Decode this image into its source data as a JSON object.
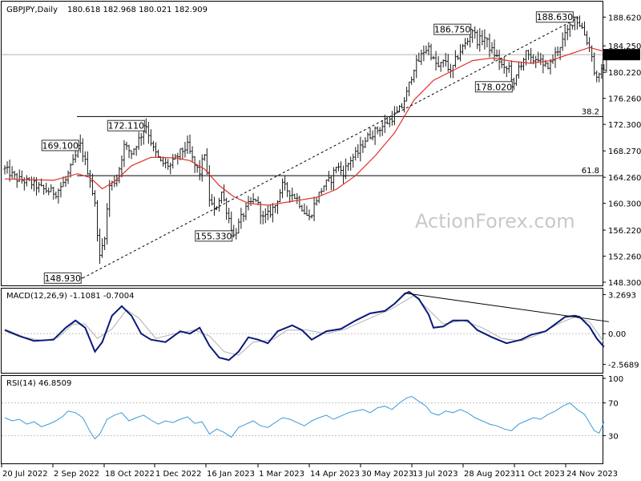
{
  "header": {
    "symbol_text": "GBPJPY,Daily",
    "ohlc_text": "180.618 182.968 180.021 182.909"
  },
  "watermark": "ActionForex.com",
  "colors": {
    "price_bars": "#1a1a1a",
    "moving_average": "#e0302a",
    "macd_line": "#0a1a7a",
    "macd_signal": "#b0b0b0",
    "rsi_line": "#3a9ad9",
    "guides": "#000000",
    "current_price_bg": "#000000",
    "current_price_fg": "#ffffff"
  },
  "chart_data": [
    {
      "type": "ohlc",
      "title": "GBPJPY,Daily",
      "ylim": [
        148.3,
        190.0
      ],
      "y_ticks": [
        "188.620",
        "184.250",
        "180.220",
        "176.260",
        "172.300",
        "168.270",
        "164.260",
        "160.300",
        "156.220",
        "152.260",
        "148.300"
      ],
      "current_price": "182.909",
      "close_path": [
        [
          0,
          165.5
        ],
        [
          5,
          164.0
        ],
        [
          10,
          163.5
        ],
        [
          16,
          162.4
        ],
        [
          21,
          161.9
        ],
        [
          25,
          163.8
        ],
        [
          29,
          167.4
        ],
        [
          31,
          169.1
        ],
        [
          35,
          164.0
        ],
        [
          37,
          160.0
        ],
        [
          39,
          152.0
        ],
        [
          41,
          155.5
        ],
        [
          43,
          163.0
        ],
        [
          46,
          164.0
        ],
        [
          49,
          169.0
        ],
        [
          52,
          168.0
        ],
        [
          55,
          170.0
        ],
        [
          58,
          172.11
        ],
        [
          61,
          168.5
        ],
        [
          64,
          166.5
        ],
        [
          68,
          166.0
        ],
        [
          72,
          168.0
        ],
        [
          75,
          169.0
        ],
        [
          78,
          166.0
        ],
        [
          80,
          165.0
        ],
        [
          82,
          168.0
        ],
        [
          84,
          161.0
        ],
        [
          86,
          159.0
        ],
        [
          89,
          162.0
        ],
        [
          92,
          158.0
        ],
        [
          94,
          155.33
        ],
        [
          97,
          158.0
        ],
        [
          100,
          160.0
        ],
        [
          103,
          161.0
        ],
        [
          106,
          158.0
        ],
        [
          108,
          158.5
        ],
        [
          111,
          160.0
        ],
        [
          114,
          163.0
        ],
        [
          117,
          162.0
        ],
        [
          120,
          161.0
        ],
        [
          123,
          159.0
        ],
        [
          125,
          158.0
        ],
        [
          128,
          161.0
        ],
        [
          131,
          163.0
        ],
        [
          134,
          164.0
        ],
        [
          136,
          166.0
        ],
        [
          139,
          165.0
        ],
        [
          142,
          167.0
        ],
        [
          145,
          168.0
        ],
        [
          148,
          170.0
        ],
        [
          151,
          171.0
        ],
        [
          155,
          172.0
        ],
        [
          158,
          173.0
        ],
        [
          161,
          174.0
        ],
        [
          163,
          175.0
        ],
        [
          165,
          177.0
        ],
        [
          168,
          181.0
        ],
        [
          170,
          182.0
        ],
        [
          172,
          183.5
        ],
        [
          174,
          184.0
        ],
        [
          176,
          182.0
        ],
        [
          178,
          181.0
        ],
        [
          181,
          182.0
        ],
        [
          183,
          180.0
        ],
        [
          185,
          182.0
        ],
        [
          187,
          183.5
        ],
        [
          190,
          185.0
        ],
        [
          192,
          186.75
        ],
        [
          194,
          185.0
        ],
        [
          197,
          185.5
        ],
        [
          199,
          184.0
        ],
        [
          201,
          183.0
        ],
        [
          203,
          182.0
        ],
        [
          205,
          180.5
        ],
        [
          207,
          181.0
        ],
        [
          209,
          178.02
        ],
        [
          211,
          181.0
        ],
        [
          214,
          183.0
        ],
        [
          216,
          182.0
        ],
        [
          219,
          182.5
        ],
        [
          221,
          181.0
        ],
        [
          224,
          181.5
        ],
        [
          226,
          183.0
        ],
        [
          229,
          185.0
        ],
        [
          231,
          186.5
        ],
        [
          234,
          188.63
        ],
        [
          237,
          187.0
        ],
        [
          239,
          185.0
        ],
        [
          241,
          183.0
        ],
        [
          242,
          180.0
        ],
        [
          244,
          179.5
        ],
        [
          246,
          181.0
        ],
        [
          247,
          182.909
        ]
      ],
      "ma_path": [
        [
          0,
          164.0
        ],
        [
          20,
          163.8
        ],
        [
          30,
          164.8
        ],
        [
          35,
          164.2
        ],
        [
          40,
          162.5
        ],
        [
          45,
          163.6
        ],
        [
          52,
          166.0
        ],
        [
          60,
          167.3
        ],
        [
          70,
          167.2
        ],
        [
          76,
          166.8
        ],
        [
          82,
          165.5
        ],
        [
          88,
          163.0
        ],
        [
          94,
          161.3
        ],
        [
          100,
          160.3
        ],
        [
          108,
          160.0
        ],
        [
          118,
          160.6
        ],
        [
          128,
          161.2
        ],
        [
          136,
          162.4
        ],
        [
          144,
          164.5
        ],
        [
          152,
          167.5
        ],
        [
          160,
          171.0
        ],
        [
          168,
          176.0
        ],
        [
          176,
          179.0
        ],
        [
          184,
          180.5
        ],
        [
          192,
          182.0
        ],
        [
          200,
          182.4
        ],
        [
          208,
          181.9
        ],
        [
          216,
          181.6
        ],
        [
          224,
          182.0
        ],
        [
          232,
          183.0
        ],
        [
          240,
          184.0
        ],
        [
          247,
          183.3
        ]
      ],
      "reference_lines": [
        {
          "label": "38.2",
          "value": 173.5
        },
        {
          "label": "61.8",
          "value": 164.5
        }
      ],
      "trendlines": [
        {
          "from": [
            32,
            148.93
          ],
          "to": [
            236,
            188.63
          ]
        }
      ],
      "annotations": [
        {
          "text": "169.100",
          "x": 31,
          "value": 169.1,
          "align": "right"
        },
        {
          "text": "172.110",
          "x": 58,
          "value": 172.11,
          "align": "right"
        },
        {
          "text": "148.930",
          "x": 32,
          "value": 148.93,
          "align": "right"
        },
        {
          "text": "155.330",
          "x": 94,
          "value": 155.33,
          "align": "right"
        },
        {
          "text": "186.750",
          "x": 192,
          "value": 186.75,
          "align": "right"
        },
        {
          "text": "178.020",
          "x": 209,
          "value": 178.02,
          "align": "right"
        },
        {
          "text": "188.630",
          "x": 234,
          "value": 188.63,
          "align": "right"
        }
      ]
    },
    {
      "type": "line",
      "title": "MACD(12,26,9) -1.1081 -0.7004",
      "series": [
        {
          "role": "macd",
          "color": "#0a1a7a"
        },
        {
          "role": "signal",
          "color": "#b0b0b0"
        }
      ],
      "ylim": [
        -3.0,
        3.5
      ],
      "y_ticks": [
        "3.2693",
        "0.00",
        "-2.5689"
      ],
      "macd_path": [
        [
          0,
          0.3
        ],
        [
          6,
          -0.2
        ],
        [
          12,
          -0.6
        ],
        [
          20,
          -0.5
        ],
        [
          25,
          0.5
        ],
        [
          29,
          1.1
        ],
        [
          33,
          0.5
        ],
        [
          37,
          -1.5
        ],
        [
          40,
          -0.7
        ],
        [
          44,
          1.5
        ],
        [
          48,
          2.3
        ],
        [
          52,
          1.5
        ],
        [
          56,
          0.0
        ],
        [
          60,
          -0.5
        ],
        [
          66,
          -0.7
        ],
        [
          72,
          0.2
        ],
        [
          76,
          0.0
        ],
        [
          80,
          0.5
        ],
        [
          84,
          -1.0
        ],
        [
          88,
          -2.0
        ],
        [
          92,
          -2.2
        ],
        [
          96,
          -1.5
        ],
        [
          100,
          -0.3
        ],
        [
          104,
          -0.5
        ],
        [
          108,
          -0.8
        ],
        [
          112,
          0.2
        ],
        [
          118,
          0.7
        ],
        [
          122,
          0.3
        ],
        [
          126,
          -0.5
        ],
        [
          132,
          0.2
        ],
        [
          138,
          0.4
        ],
        [
          144,
          1.1
        ],
        [
          150,
          1.7
        ],
        [
          156,
          1.9
        ],
        [
          160,
          2.5
        ],
        [
          164,
          3.3
        ],
        [
          166,
          3.5
        ],
        [
          170,
          2.9
        ],
        [
          174,
          1.6
        ],
        [
          176,
          0.5
        ],
        [
          180,
          0.6
        ],
        [
          184,
          1.1
        ],
        [
          190,
          1.1
        ],
        [
          194,
          0.3
        ],
        [
          200,
          -0.3
        ],
        [
          206,
          -0.8
        ],
        [
          212,
          -0.5
        ],
        [
          216,
          -0.1
        ],
        [
          222,
          0.2
        ],
        [
          226,
          0.8
        ],
        [
          230,
          1.4
        ],
        [
          234,
          1.5
        ],
        [
          236,
          1.4
        ],
        [
          240,
          0.6
        ],
        [
          243,
          -0.4
        ],
        [
          246,
          -1.1081
        ]
      ],
      "signal_path": [
        [
          0,
          0.4
        ],
        [
          8,
          -0.3
        ],
        [
          16,
          -0.6
        ],
        [
          22,
          -0.3
        ],
        [
          28,
          0.8
        ],
        [
          33,
          0.8
        ],
        [
          38,
          -0.4
        ],
        [
          44,
          0.4
        ],
        [
          50,
          2.0
        ],
        [
          55,
          1.3
        ],
        [
          62,
          -0.4
        ],
        [
          70,
          0.0
        ],
        [
          78,
          0.3
        ],
        [
          84,
          -0.2
        ],
        [
          90,
          -1.5
        ],
        [
          96,
          -1.8
        ],
        [
          102,
          -0.7
        ],
        [
          110,
          -0.5
        ],
        [
          116,
          0.3
        ],
        [
          124,
          0.3
        ],
        [
          132,
          0.0
        ],
        [
          140,
          0.4
        ],
        [
          150,
          1.3
        ],
        [
          158,
          2.0
        ],
        [
          164,
          2.7
        ],
        [
          168,
          3.2
        ],
        [
          174,
          2.0
        ],
        [
          180,
          0.8
        ],
        [
          188,
          1.1
        ],
        [
          196,
          0.5
        ],
        [
          204,
          -0.4
        ],
        [
          212,
          -0.6
        ],
        [
          220,
          0.0
        ],
        [
          228,
          0.9
        ],
        [
          234,
          1.4
        ],
        [
          240,
          1.0
        ],
        [
          246,
          -0.7004
        ]
      ],
      "trendlines": [
        {
          "from": [
            164,
            3.4
          ],
          "to": [
            248,
            1.0
          ]
        }
      ]
    },
    {
      "type": "line",
      "title": "RSI(14) 46.8509",
      "ylim": [
        0,
        100
      ],
      "y_ticks": [
        "100",
        "70",
        "30"
      ],
      "reference_lines": [
        70,
        30
      ],
      "rsi_path": [
        [
          0,
          52
        ],
        [
          3,
          48
        ],
        [
          6,
          50
        ],
        [
          9,
          44
        ],
        [
          12,
          47
        ],
        [
          15,
          41
        ],
        [
          18,
          44
        ],
        [
          21,
          48
        ],
        [
          24,
          54
        ],
        [
          26,
          60
        ],
        [
          29,
          58
        ],
        [
          32,
          52
        ],
        [
          35,
          35
        ],
        [
          37,
          26
        ],
        [
          39,
          32
        ],
        [
          42,
          50
        ],
        [
          45,
          55
        ],
        [
          48,
          58
        ],
        [
          51,
          48
        ],
        [
          54,
          52
        ],
        [
          57,
          55
        ],
        [
          60,
          49
        ],
        [
          63,
          44
        ],
        [
          66,
          48
        ],
        [
          69,
          46
        ],
        [
          72,
          50
        ],
        [
          75,
          53
        ],
        [
          78,
          45
        ],
        [
          81,
          47
        ],
        [
          84,
          32
        ],
        [
          87,
          38
        ],
        [
          90,
          34
        ],
        [
          93,
          28
        ],
        [
          96,
          40
        ],
        [
          99,
          44
        ],
        [
          102,
          48
        ],
        [
          105,
          42
        ],
        [
          108,
          40
        ],
        [
          111,
          46
        ],
        [
          114,
          52
        ],
        [
          117,
          50
        ],
        [
          120,
          46
        ],
        [
          123,
          42
        ],
        [
          126,
          48
        ],
        [
          129,
          52
        ],
        [
          132,
          55
        ],
        [
          135,
          50
        ],
        [
          138,
          54
        ],
        [
          141,
          58
        ],
        [
          144,
          60
        ],
        [
          147,
          62
        ],
        [
          150,
          58
        ],
        [
          153,
          64
        ],
        [
          156,
          66
        ],
        [
          159,
          62
        ],
        [
          162,
          70
        ],
        [
          165,
          76
        ],
        [
          167,
          78
        ],
        [
          170,
          72
        ],
        [
          173,
          66
        ],
        [
          175,
          58
        ],
        [
          178,
          55
        ],
        [
          181,
          60
        ],
        [
          184,
          58
        ],
        [
          187,
          62
        ],
        [
          190,
          58
        ],
        [
          193,
          52
        ],
        [
          196,
          48
        ],
        [
          199,
          44
        ],
        [
          202,
          42
        ],
        [
          205,
          38
        ],
        [
          208,
          36
        ],
        [
          211,
          44
        ],
        [
          214,
          48
        ],
        [
          217,
          52
        ],
        [
          220,
          50
        ],
        [
          223,
          56
        ],
        [
          226,
          60
        ],
        [
          229,
          66
        ],
        [
          232,
          70
        ],
        [
          235,
          62
        ],
        [
          238,
          56
        ],
        [
          240,
          46
        ],
        [
          242,
          36
        ],
        [
          244,
          33
        ],
        [
          246,
          46.8509
        ]
      ]
    }
  ],
  "x_axis": {
    "labels": [
      {
        "text": "20 Jul 2022",
        "bar": 0
      },
      {
        "text": "2 Sep 2022",
        "bar": 31
      },
      {
        "text": "18 Oct 2022",
        "bar": 63
      },
      {
        "text": "1 Dec 2022",
        "bar": 94
      },
      {
        "text": "16 Jan 2023",
        "bar": 126
      },
      {
        "text": "1 Mar 2023",
        "bar": 157
      },
      {
        "text": "14 Apr 2023",
        "bar": 188
      },
      {
        "text": "30 May 2023",
        "bar": 220
      },
      {
        "text": "13 Jul 2023",
        "bar": 250
      },
      {
        "text": "28 Aug 2023",
        "bar": 283
      },
      {
        "text": "11 Oct 2023",
        "bar": 314
      },
      {
        "text": "24 Nov 2023",
        "bar": 345
      }
    ]
  }
}
